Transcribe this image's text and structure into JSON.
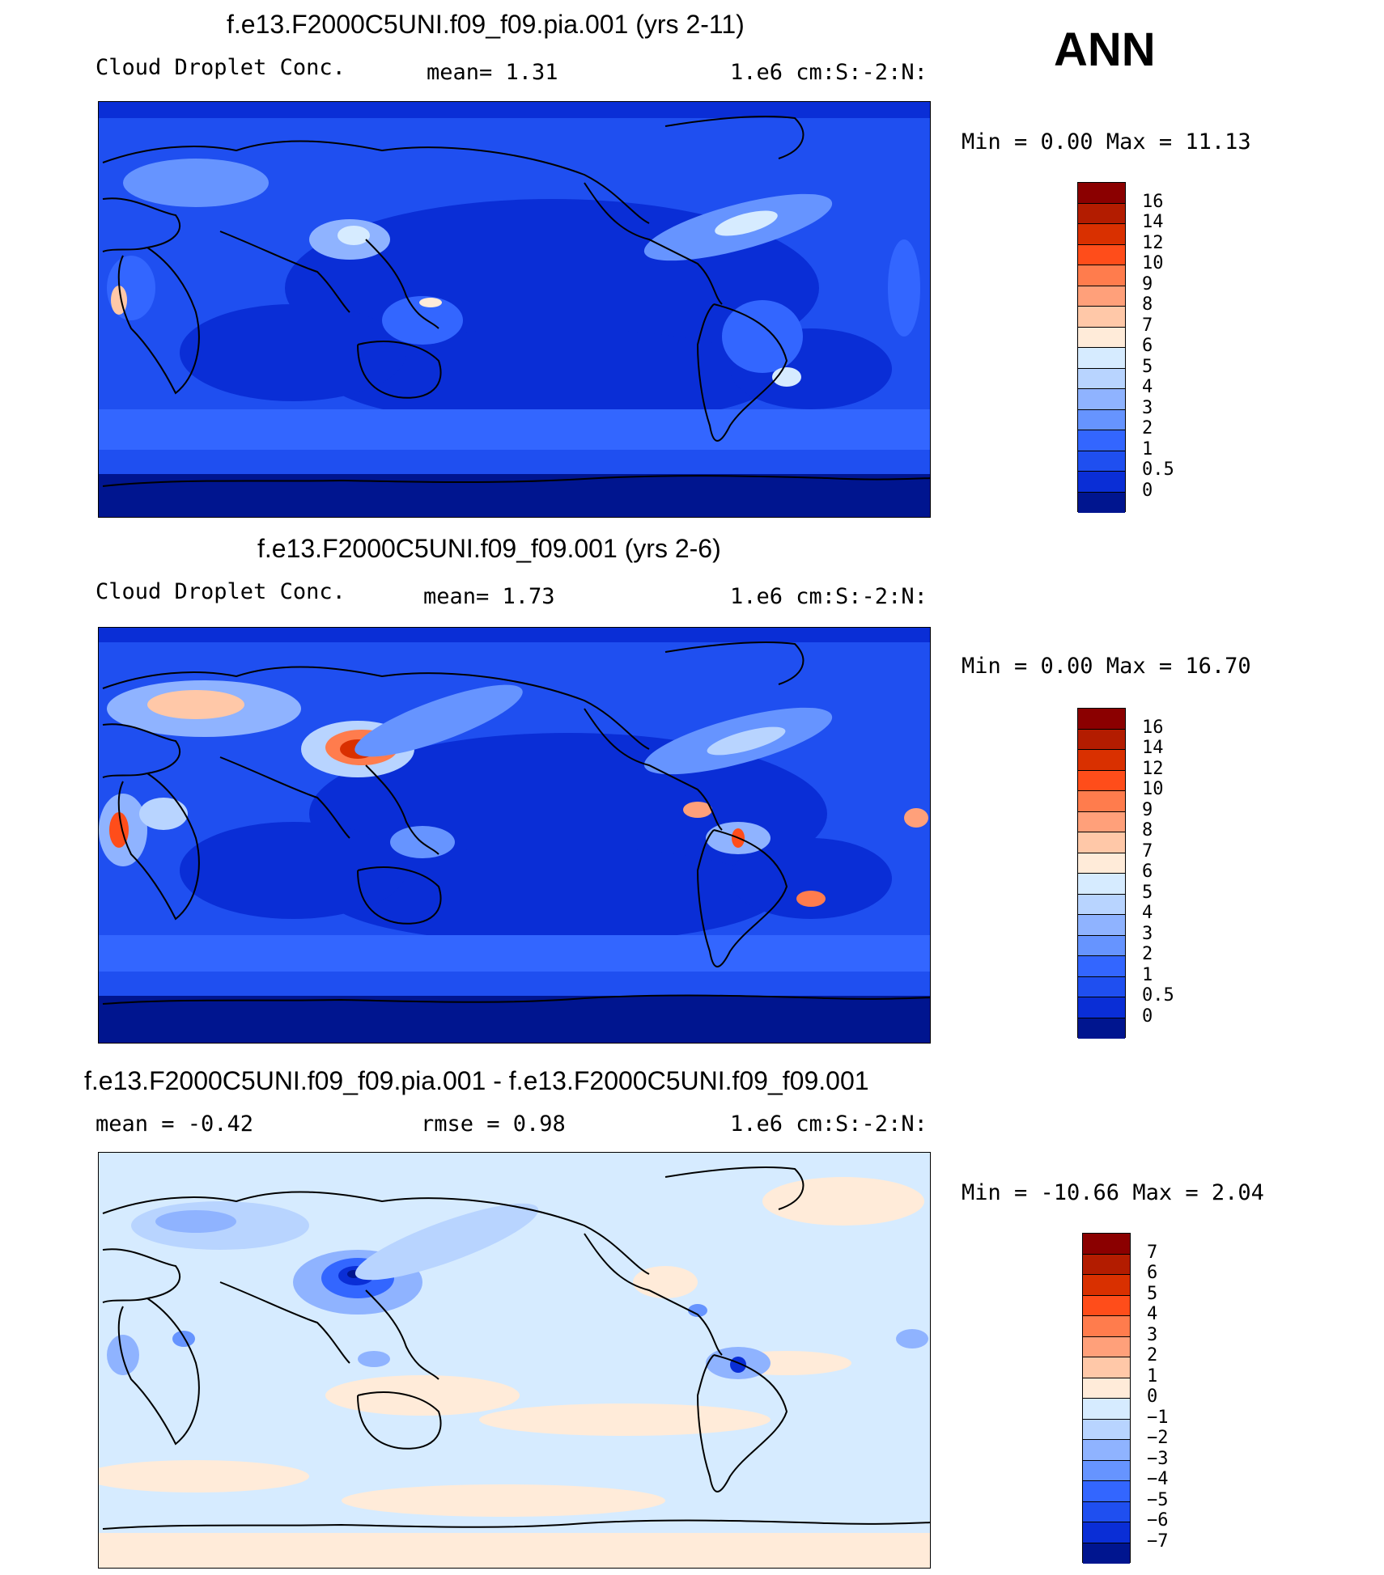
{
  "season": "ANN",
  "panels": [
    {
      "title": "f.e13.F2000C5UNI.f09_f09.pia.001 (yrs 2-11)",
      "variable": "Cloud Droplet Conc.",
      "stat_text": "mean=   1.31",
      "units": "1.e6 cm:S:-2:N:",
      "minmax": "Min =   0.00 Max =  11.13",
      "palette": "abs",
      "colorbar_labels": [
        "16",
        "14",
        "12",
        "10",
        "9",
        "8",
        "7",
        "6",
        "5",
        "4",
        "3",
        "2",
        "1",
        "0.5",
        "0"
      ]
    },
    {
      "title": "f.e13.F2000C5UNI.f09_f09.001 (yrs 2-6)",
      "variable": "Cloud Droplet Conc.",
      "stat_text": "mean=   1.73",
      "units": "1.e6 cm:S:-2:N:",
      "minmax": "Min =   0.00 Max =  16.70",
      "palette": "abs",
      "colorbar_labels": [
        "16",
        "14",
        "12",
        "10",
        "9",
        "8",
        "7",
        "6",
        "5",
        "4",
        "3",
        "2",
        "1",
        "0.5",
        "0"
      ]
    },
    {
      "title": "f.e13.F2000C5UNI.f09_f09.pia.001 - f.e13.F2000C5UNI.f09_f09.001",
      "mean_text": "mean =  -0.42",
      "rmse_text": "rmse =   0.98",
      "units": "1.e6 cm:S:-2:N:",
      "minmax": "Min = -10.66 Max =   2.04",
      "palette": "diff",
      "colorbar_labels": [
        "7",
        "6",
        "5",
        "4",
        "3",
        "2",
        "1",
        "0",
        "-1",
        "-2",
        "-3",
        "-4",
        "-5",
        "-6",
        "-7"
      ]
    }
  ],
  "palettes": {
    "abs": [
      "#8b0000",
      "#b31c00",
      "#d93000",
      "#ff4d1a",
      "#ff7c4d",
      "#ffa07a",
      "#ffc8a8",
      "#ffebd9",
      "#d6ebff",
      "#b8d4ff",
      "#8fb3ff",
      "#6694ff",
      "#3366ff",
      "#1f4ff0",
      "#0a2ed6",
      "#00158f"
    ],
    "diff": [
      "#8b0000",
      "#b31c00",
      "#d93000",
      "#ff4d1a",
      "#ff7c4d",
      "#ffa07a",
      "#ffc8a8",
      "#ffebd9",
      "#d6ebff",
      "#b8d4ff",
      "#8fb3ff",
      "#6694ff",
      "#3366ff",
      "#1f4ff0",
      "#0a2ed6",
      "#00158f"
    ]
  }
}
